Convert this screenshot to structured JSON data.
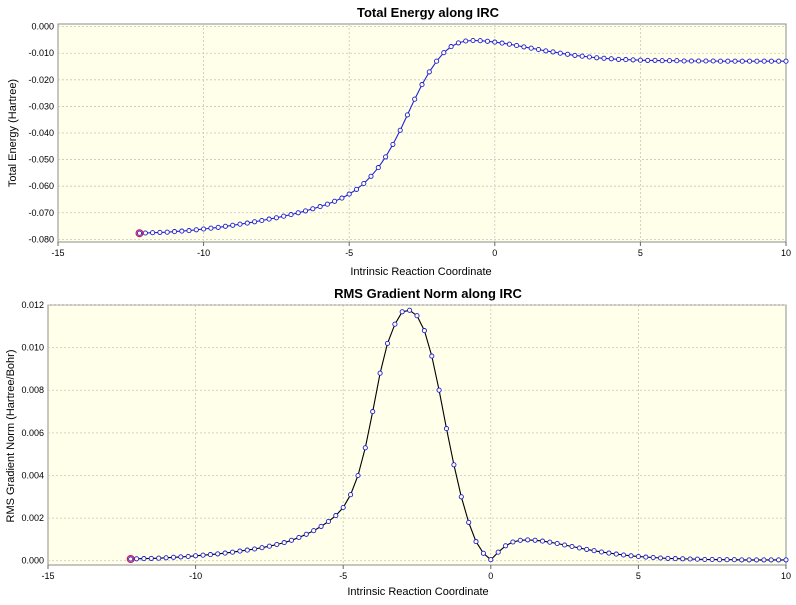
{
  "chart_data": [
    {
      "type": "line",
      "title": "Total Energy along IRC",
      "xlabel": "Intrinsic Reaction Coordinate",
      "ylabel": "Total Energy (Hartree)",
      "xlim": [
        -15,
        10
      ],
      "ylim": [
        -0.081,
        0.001
      ],
      "xticks": [
        -15,
        -10,
        -5,
        0,
        5,
        10
      ],
      "yticks": [
        0.0,
        -0.01,
        -0.02,
        -0.03,
        -0.04,
        -0.05,
        -0.06,
        -0.07,
        -0.08
      ],
      "xtick_labels": [
        "-15",
        "-10",
        "-5",
        "0",
        "5",
        "10"
      ],
      "ytick_labels": [
        "0.000",
        "-0.010",
        "-0.020",
        "-0.030",
        "-0.040",
        "-0.050",
        "-0.060",
        "-0.070",
        "-0.080"
      ],
      "grid": true,
      "colors": {
        "line": "#2222dd",
        "marker": "#1d1dcc",
        "start_marker": "#d01060",
        "plot_bg": "#ffffea"
      },
      "series": [
        {
          "x": [
            -12.2,
            -12.0,
            -11.75,
            -11.5,
            -11.25,
            -11.0,
            -10.75,
            -10.5,
            -10.25,
            -10.0,
            -9.75,
            -9.5,
            -9.25,
            -9.0,
            -8.75,
            -8.5,
            -8.25,
            -8.0,
            -7.75,
            -7.5,
            -7.25,
            -7.0,
            -6.75,
            -6.5,
            -6.25,
            -6.0,
            -5.75,
            -5.5,
            -5.25,
            -5.0,
            -4.75,
            -4.5,
            -4.25,
            -4.0,
            -3.75,
            -3.5,
            -3.25,
            -3.0,
            -2.75,
            -2.5,
            -2.25,
            -2.0,
            -1.75,
            -1.5,
            -1.25,
            -1.0,
            -0.75,
            -0.5,
            -0.25,
            0.0,
            0.25,
            0.5,
            0.75,
            1.0,
            1.25,
            1.5,
            1.75,
            2.0,
            2.25,
            2.5,
            2.75,
            3.0,
            3.25,
            3.5,
            3.75,
            4.0,
            4.25,
            4.5,
            4.75,
            5.0,
            5.25,
            5.5,
            5.75,
            6.0,
            6.25,
            6.5,
            6.75,
            7.0,
            7.25,
            7.5,
            7.75,
            8.0,
            8.25,
            8.5,
            8.75,
            9.0,
            9.25,
            9.5,
            9.75,
            10.0
          ],
          "y": [
            -0.0777,
            -0.0776,
            -0.0775,
            -0.0774,
            -0.0773,
            -0.0771,
            -0.0769,
            -0.0767,
            -0.0764,
            -0.0761,
            -0.0758,
            -0.0755,
            -0.0751,
            -0.0747,
            -0.0743,
            -0.0739,
            -0.0734,
            -0.0729,
            -0.0724,
            -0.0719,
            -0.0713,
            -0.0707,
            -0.07,
            -0.0693,
            -0.0685,
            -0.0677,
            -0.0668,
            -0.0657,
            -0.0645,
            -0.063,
            -0.0612,
            -0.059,
            -0.0563,
            -0.053,
            -0.049,
            -0.0443,
            -0.039,
            -0.0332,
            -0.0273,
            -0.0218,
            -0.017,
            -0.013,
            -0.0098,
            -0.0075,
            -0.0061,
            -0.0054,
            -0.0052,
            -0.0053,
            -0.0055,
            -0.0058,
            -0.0062,
            -0.0066,
            -0.0071,
            -0.0076,
            -0.0081,
            -0.0086,
            -0.0091,
            -0.0095,
            -0.01,
            -0.0104,
            -0.0108,
            -0.0111,
            -0.0114,
            -0.0117,
            -0.0119,
            -0.0121,
            -0.0123,
            -0.0124,
            -0.0125,
            -0.0126,
            -0.0127,
            -0.0127,
            -0.0128,
            -0.0128,
            -0.0128,
            -0.0129,
            -0.0129,
            -0.0129,
            -0.0129,
            -0.0129,
            -0.013,
            -0.013,
            -0.013,
            -0.013,
            -0.013,
            -0.013,
            -0.013,
            -0.013,
            -0.013,
            -0.013
          ]
        }
      ]
    },
    {
      "type": "line",
      "title": "RMS Gradient Norm along IRC",
      "xlabel": "Intrinsic Reaction Coordinate",
      "ylabel": "RMS Gradient Norm (Hartree/Bohr)",
      "xlim": [
        -15,
        10
      ],
      "ylim": [
        -0.0002,
        0.012
      ],
      "xticks": [
        -15,
        -10,
        -5,
        0,
        5,
        10
      ],
      "yticks": [
        0.0,
        0.002,
        0.004,
        0.006,
        0.008,
        0.01,
        0.012
      ],
      "xtick_labels": [
        "-15",
        "-10",
        "-5",
        "0",
        "5",
        "10"
      ],
      "ytick_labels": [
        "0.000",
        "0.002",
        "0.004",
        "0.006",
        "0.008",
        "0.010",
        "0.012"
      ],
      "grid": true,
      "colors": {
        "line": "#000000",
        "marker": "#1d1dcc",
        "start_marker": "#d01060",
        "plot_bg": "#ffffea"
      },
      "series": [
        {
          "x": [
            -12.2,
            -12.0,
            -11.75,
            -11.5,
            -11.25,
            -11.0,
            -10.75,
            -10.5,
            -10.25,
            -10.0,
            -9.75,
            -9.5,
            -9.25,
            -9.0,
            -8.75,
            -8.5,
            -8.25,
            -8.0,
            -7.75,
            -7.5,
            -7.25,
            -7.0,
            -6.75,
            -6.5,
            -6.25,
            -6.0,
            -5.75,
            -5.5,
            -5.25,
            -5.0,
            -4.75,
            -4.5,
            -4.25,
            -4.0,
            -3.75,
            -3.5,
            -3.25,
            -3.0,
            -2.75,
            -2.5,
            -2.25,
            -2.0,
            -1.75,
            -1.5,
            -1.25,
            -1.0,
            -0.75,
            -0.5,
            -0.25,
            0.0,
            0.25,
            0.5,
            0.75,
            1.0,
            1.25,
            1.5,
            1.75,
            2.0,
            2.25,
            2.5,
            2.75,
            3.0,
            3.25,
            3.5,
            3.75,
            4.0,
            4.25,
            4.5,
            4.75,
            5.0,
            5.25,
            5.5,
            5.75,
            6.0,
            6.25,
            6.5,
            6.75,
            7.0,
            7.25,
            7.5,
            7.75,
            8.0,
            8.25,
            8.5,
            8.75,
            9.0,
            9.25,
            9.5,
            9.75,
            10.0
          ],
          "y": [
            8e-05,
            9e-05,
            0.0001,
            0.00011,
            0.00012,
            0.00014,
            0.00016,
            0.00018,
            0.0002,
            0.00023,
            0.00026,
            0.00029,
            0.00032,
            0.00036,
            0.0004,
            0.00045,
            0.0005,
            0.00055,
            0.00061,
            0.00068,
            0.00076,
            0.00085,
            0.00096,
            0.00109,
            0.00124,
            0.00141,
            0.00161,
            0.00184,
            0.00212,
            0.0025,
            0.0031,
            0.004,
            0.0053,
            0.007,
            0.0088,
            0.0102,
            0.0111,
            0.01168,
            0.01175,
            0.0115,
            0.0108,
            0.0096,
            0.008,
            0.0062,
            0.0045,
            0.003,
            0.0018,
            0.0009,
            0.00035,
            5e-05,
            0.0004,
            0.0007,
            0.00088,
            0.00096,
            0.00098,
            0.00096,
            0.00092,
            0.00087,
            0.00081,
            0.00074,
            0.00067,
            0.0006,
            0.00053,
            0.00047,
            0.00041,
            0.00036,
            0.00031,
            0.00027,
            0.00023,
            0.0002,
            0.00017,
            0.00015,
            0.00013,
            0.00011,
            0.0001,
            9e-05,
            8e-05,
            7e-05,
            6e-05,
            6e-05,
            5e-05,
            5e-05,
            5e-05,
            4e-05,
            4e-05,
            4e-05,
            4e-05,
            4e-05,
            4e-05,
            4e-05
          ]
        }
      ]
    }
  ]
}
